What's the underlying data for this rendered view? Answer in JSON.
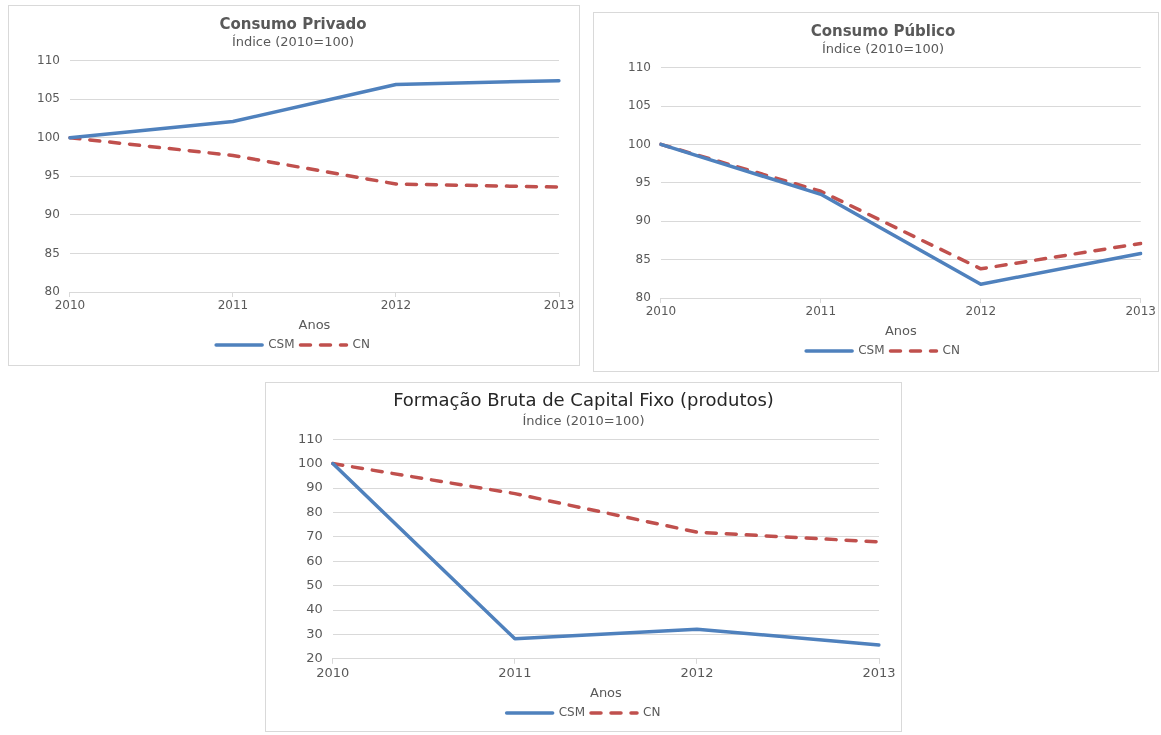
{
  "chart_data": [
    {
      "type": "line",
      "title": "Consumo Privado",
      "subtitle": "Índice (2010=100)",
      "xlabel": "Anos",
      "categories": [
        "2010",
        "2011",
        "2012",
        "2013"
      ],
      "series": [
        {
          "name": "CSM",
          "color": "#4f81bd",
          "values": [
            100,
            102.1,
            106.9,
            107.4
          ]
        },
        {
          "name": "CN",
          "color": "#c0504d",
          "line_style": "dashed",
          "values": [
            100,
            97.7,
            94,
            93.6
          ]
        }
      ],
      "ylim": [
        80,
        110
      ],
      "yticks": [
        80,
        85,
        90,
        95,
        100,
        105,
        110
      ],
      "grid": "y",
      "legend": "bottom",
      "marker": "none"
    },
    {
      "type": "line",
      "title": "Consumo Público",
      "subtitle": "Índice (2010=100)",
      "xlabel": "Anos",
      "categories": [
        "2010",
        "2011",
        "2012",
        "2013"
      ],
      "series": [
        {
          "name": "CSM",
          "color": "#4f81bd",
          "values": [
            100,
            93.5,
            81.8,
            85.8
          ]
        },
        {
          "name": "CN",
          "color": "#c0504d",
          "line_style": "dashed",
          "values": [
            100,
            93.9,
            83.8,
            87.1
          ]
        }
      ],
      "ylim": [
        80,
        110
      ],
      "yticks": [
        80,
        85,
        90,
        95,
        100,
        105,
        110
      ],
      "grid": "y",
      "legend": "bottom",
      "marker": "none"
    },
    {
      "type": "line",
      "title": "Formação Bruta de Capital Fixo (produtos)",
      "subtitle": "Índice (2010=100)",
      "xlabel": "Anos",
      "categories": [
        "2010",
        "2011",
        "2012",
        "2013"
      ],
      "series": [
        {
          "name": "CSM",
          "color": "#4f81bd",
          "values": [
            100,
            28.2,
            32.1,
            25.7
          ]
        },
        {
          "name": "CN",
          "color": "#c0504d",
          "line_style": "dashed",
          "values": [
            100,
            87.7,
            71.9,
            67.9
          ]
        }
      ],
      "ylim": [
        20,
        110
      ],
      "yticks": [
        20,
        30,
        40,
        50,
        60,
        70,
        80,
        90,
        100,
        110
      ],
      "grid": "y",
      "legend": "bottom",
      "marker": "none"
    }
  ]
}
